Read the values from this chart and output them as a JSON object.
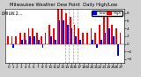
{
  "title1": "Milwaukee Weather Dew Point",
  "title2": "Daily High/Low",
  "background_color": "#d0d0d0",
  "plot_bg": "#ffffff",
  "ylim": [
    -5,
    9
  ],
  "yticks": [
    -4,
    -2,
    0,
    2,
    4,
    6,
    8
  ],
  "high_color": "#ff0000",
  "low_color": "#0000ff",
  "vline_positions": [
    13.5,
    14.5,
    15.5,
    16.5
  ],
  "highs": [
    2,
    2,
    2,
    3,
    3,
    4,
    4,
    3,
    2,
    3,
    5,
    4,
    9,
    9,
    8,
    7,
    5,
    4,
    3,
    3,
    4,
    3,
    5,
    7,
    7,
    5,
    4,
    3
  ],
  "lows": [
    0,
    -1,
    0,
    1,
    1,
    2,
    2,
    1,
    -1,
    0,
    2,
    1,
    6,
    6,
    5,
    4,
    2,
    1,
    0,
    0,
    1,
    -1,
    1,
    3,
    4,
    2,
    -3,
    0
  ],
  "xtick_labels": [
    "0",
    "1",
    "2",
    "3",
    "4",
    "5",
    "6",
    "7",
    "8",
    "9",
    "10",
    "11",
    "12",
    "13",
    "14",
    "15",
    "16",
    "17",
    "18",
    "19",
    "20",
    "21",
    "22",
    "23",
    "24",
    "25",
    "26",
    "27"
  ],
  "xtick_fontsize": 3.0,
  "ytick_fontsize": 3.0,
  "title_fontsize": 3.8,
  "ylabel_text": "LMILW.2...",
  "ylabel_fontsize": 3.5
}
